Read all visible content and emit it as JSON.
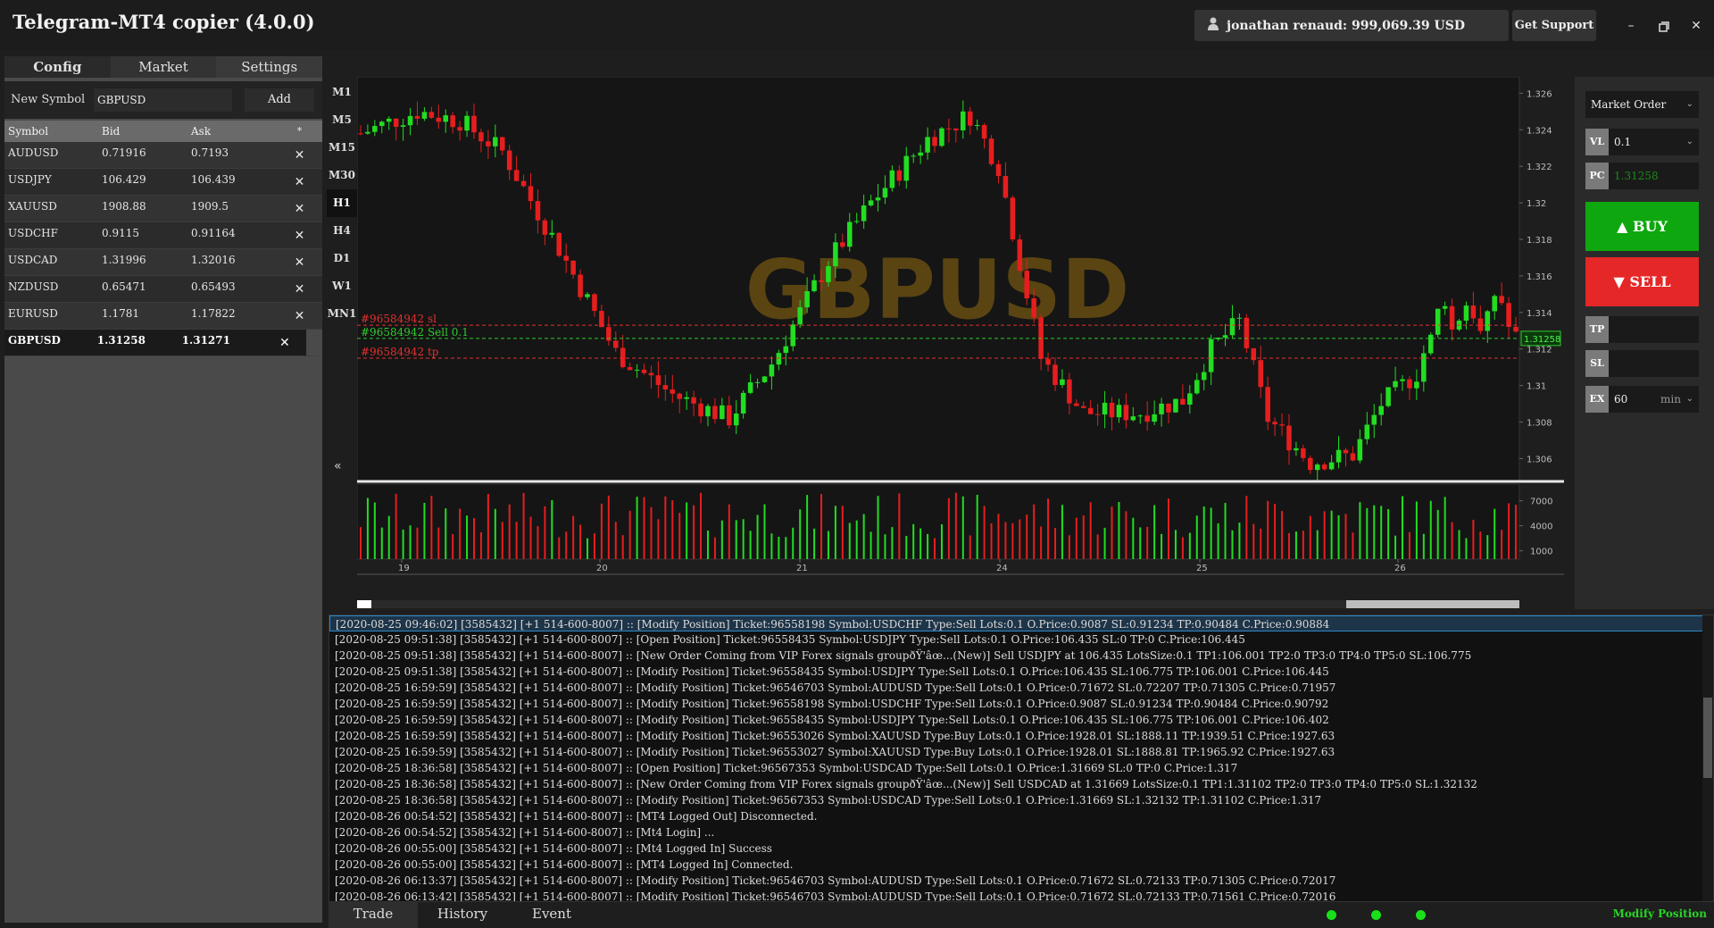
{
  "app": {
    "title": "Telegram-MT4 copier (4.0.0)",
    "account": "jonathan renaud: 999,069.39 USD",
    "support": "Get Support",
    "min_icon": "minimize-icon",
    "restore_icon": "restore-icon",
    "close_icon": "close-icon"
  },
  "left": {
    "tabs": [
      "Config",
      "Market",
      "Settings"
    ],
    "new_symbol_label": "New Symbol",
    "new_symbol_value": "GBPUSD",
    "add_label": "Add",
    "headers": [
      "Symbol",
      "Bid",
      "Ask",
      "*"
    ],
    "rows": [
      {
        "symbol": "AUDUSD",
        "bid": "0.71916",
        "ask": "0.7193"
      },
      {
        "symbol": "USDJPY",
        "bid": "106.429",
        "ask": "106.439"
      },
      {
        "symbol": "XAUUSD",
        "bid": "1908.88",
        "ask": "1909.5"
      },
      {
        "symbol": "USDCHF",
        "bid": "0.9115",
        "ask": "0.91164"
      },
      {
        "symbol": "USDCAD",
        "bid": "1.31996",
        "ask": "1.32016"
      },
      {
        "symbol": "NZDUSD",
        "bid": "0.65471",
        "ask": "0.65493"
      },
      {
        "symbol": "EURUSD",
        "bid": "1.1781",
        "ask": "1.17822"
      },
      {
        "symbol": "GBPUSD",
        "bid": "1.31258",
        "ask": "1.31271"
      }
    ],
    "remove_glyph": "✕"
  },
  "timeframes": [
    "M1",
    "M5",
    "M15",
    "M30",
    "H1",
    "H4",
    "D1",
    "W1",
    "MN1"
  ],
  "active_timeframe": "H1",
  "collapse_glyph": "«",
  "chart_data": {
    "type": "candlestick",
    "symbol_watermark": "GBPUSD",
    "price_ticks": [
      "1.326",
      "1.324",
      "1.322",
      "1.32",
      "1.318",
      "1.316",
      "1.314",
      "1.312",
      "1.31",
      "1.308",
      "1.306"
    ],
    "price_range": [
      1.3048,
      1.3268
    ],
    "volume_ticks": [
      "7000",
      "4000",
      "1000"
    ],
    "volume_range": [
      0,
      9000
    ],
    "date_ticks": [
      "19",
      "20",
      "21",
      "24",
      "25",
      "26"
    ],
    "current_price": "1.31258",
    "current_price_value": 1.31258,
    "order_lines": [
      {
        "label": "#96584942 sl",
        "price": 1.3133,
        "color": "#e53030"
      },
      {
        "label": "#96584942 Sell 0.1",
        "price": 1.31258,
        "color": "#2ecc2e"
      },
      {
        "label": "#96584942 tp",
        "price": 1.3115,
        "color": "#e53030"
      }
    ],
    "colors": {
      "up": "#22dd22",
      "down": "#e61e1e",
      "grid": "#2a2a2a",
      "watermark": "#5a4412"
    }
  },
  "order": {
    "type": "Market Order",
    "vl_label": "VL",
    "vl_value": "0.1",
    "pc_label": "PC",
    "pc_value": "1.31258",
    "buy_label": "▲ BUY",
    "sell_label": "▼ SELL",
    "tp_label": "TP",
    "tp_value": "",
    "sl_label": "SL",
    "sl_value": "",
    "ex_label": "EX",
    "ex_value": "60",
    "ex_unit": "min"
  },
  "log": [
    "[2020-08-25 09:46:02] [3585432] [+1 514-600-8007] :: [Modify Position] Ticket:96558198 Symbol:USDCHF Type:Sell Lots:0.1 O.Price:0.9087 SL:0.91234 TP:0.90484 C.Price:0.90884",
    "[2020-08-25 09:51:38] [3585432] [+1 514-600-8007] :: [Open Position] Ticket:96558435 Symbol:USDJPY Type:Sell Lots:0.1 O.Price:106.435 SL:0 TP:0 C.Price:106.445",
    "[2020-08-25 09:51:38] [3585432] [+1 514-600-8007] :: [New Order Coming from VIP Forex signals groupðŸ'âœ...(New)] Sell USDJPY at 106.435 LotsSize:0.1 TP1:106.001 TP2:0 TP3:0 TP4:0 TP5:0 SL:106.775",
    "[2020-08-25 09:51:38] [3585432] [+1 514-600-8007] :: [Modify Position] Ticket:96558435 Symbol:USDJPY Type:Sell Lots:0.1 O.Price:106.435 SL:106.775 TP:106.001 C.Price:106.445",
    "[2020-08-25 16:59:59] [3585432] [+1 514-600-8007] :: [Modify Position] Ticket:96546703 Symbol:AUDUSD Type:Sell Lots:0.1 O.Price:0.71672 SL:0.72207 TP:0.71305 C.Price:0.71957",
    "[2020-08-25 16:59:59] [3585432] [+1 514-600-8007] :: [Modify Position] Ticket:96558198 Symbol:USDCHF Type:Sell Lots:0.1 O.Price:0.9087 SL:0.91234 TP:0.90484 C.Price:0.90792",
    "[2020-08-25 16:59:59] [3585432] [+1 514-600-8007] :: [Modify Position] Ticket:96558435 Symbol:USDJPY Type:Sell Lots:0.1 O.Price:106.435 SL:106.775 TP:106.001 C.Price:106.402",
    "[2020-08-25 16:59:59] [3585432] [+1 514-600-8007] :: [Modify Position] Ticket:96553026 Symbol:XAUUSD Type:Buy Lots:0.1 O.Price:1928.01 SL:1888.11 TP:1939.51 C.Price:1927.63",
    "[2020-08-25 16:59:59] [3585432] [+1 514-600-8007] :: [Modify Position] Ticket:96553027 Symbol:XAUUSD Type:Buy Lots:0.1 O.Price:1928.01 SL:1888.81 TP:1965.92 C.Price:1927.63",
    "[2020-08-25 18:36:58] [3585432] [+1 514-600-8007] :: [Open Position] Ticket:96567353 Symbol:USDCAD Type:Sell Lots:0.1 O.Price:1.31669 SL:0 TP:0 C.Price:1.317",
    "[2020-08-25 18:36:58] [3585432] [+1 514-600-8007] :: [New Order Coming from VIP Forex signals groupðŸ'âœ...(New)] Sell USDCAD at 1.31669 LotsSize:0.1 TP1:1.31102 TP2:0 TP3:0 TP4:0 TP5:0 SL:1.32132",
    "[2020-08-25 18:36:58] [3585432] [+1 514-600-8007] :: [Modify Position] Ticket:96567353 Symbol:USDCAD Type:Sell Lots:0.1 O.Price:1.31669 SL:1.32132 TP:1.31102 C.Price:1.317",
    "[2020-08-26 00:54:52] [3585432] [+1 514-600-8007] :: [MT4 Logged Out] Disconnected.",
    "[2020-08-26 00:54:52] [3585432] [+1 514-600-8007] :: [Mt4 Login] ...",
    "[2020-08-26 00:55:00] [3585432] [+1 514-600-8007] :: [Mt4 Logged In] Success",
    "[2020-08-26 00:55:00] [3585432] [+1 514-600-8007] :: [MT4 Logged In] Connected.",
    "[2020-08-26 06:13:37] [3585432] [+1 514-600-8007] :: [Modify Position] Ticket:96546703 Symbol:AUDUSD Type:Sell Lots:0.1 O.Price:0.71672 SL:0.72133 TP:0.71305 C.Price:0.72017",
    "[2020-08-26 06:13:42] [3585432] [+1 514-600-8007] :: [Modify Position] Ticket:96546703 Symbol:AUDUSD Type:Sell Lots:0.1 O.Price:0.71672 SL:0.72133 TP:0.71561 C.Price:0.72016"
  ],
  "bottom": {
    "tabs": [
      "Trade",
      "History",
      "Event"
    ],
    "status": "Modify Position",
    "dot_color": "#19e019"
  }
}
